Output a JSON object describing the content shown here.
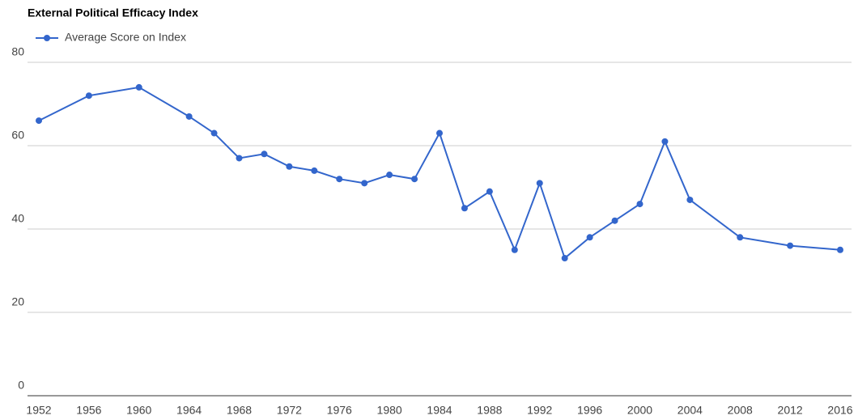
{
  "chart_data": {
    "type": "line",
    "title": "External Political Efficacy Index",
    "x": [
      1952,
      1956,
      1960,
      1964,
      1966,
      1968,
      1970,
      1972,
      1974,
      1976,
      1978,
      1980,
      1982,
      1984,
      1986,
      1988,
      1990,
      1992,
      1994,
      1996,
      1998,
      2000,
      2002,
      2004,
      2008,
      2012,
      2016
    ],
    "series": [
      {
        "name": "Average Score on Index",
        "color": "#3366cc",
        "values": [
          66,
          72,
          74,
          67,
          63,
          57,
          58,
          55,
          54,
          52,
          51,
          53,
          52,
          63,
          45,
          49,
          35,
          51,
          33,
          38,
          42,
          46,
          61,
          47,
          38,
          36,
          35
        ]
      }
    ],
    "xlim": [
      1952,
      2016
    ],
    "xticks": [
      1952,
      1956,
      1960,
      1964,
      1968,
      1972,
      1976,
      1980,
      1984,
      1988,
      1992,
      1996,
      2000,
      2004,
      2008,
      2012,
      2016
    ],
    "ylim": [
      0,
      80
    ],
    "yticks": [
      0,
      20,
      40,
      60,
      80
    ],
    "grid": true,
    "legend": "top-left"
  }
}
